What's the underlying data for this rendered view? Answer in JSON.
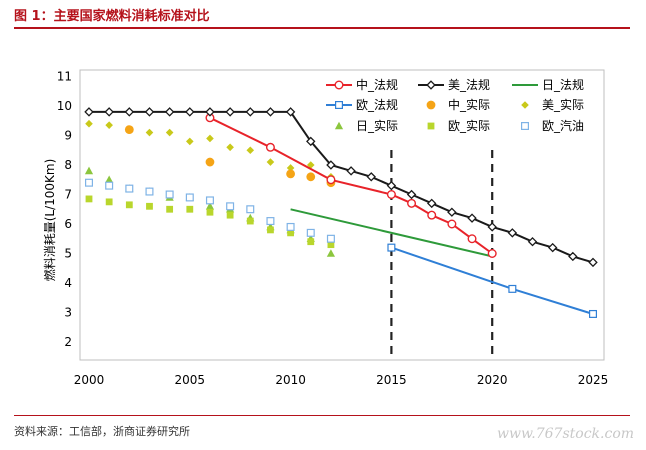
{
  "title": "图 1：主要国家燃料消耗标准对比",
  "source": "资料来源：工信部，浙商证券研究所",
  "watermark": "www.767stock.com",
  "chart_data": {
    "type": "line",
    "ylabel": "燃料消耗量(L/100Km)",
    "xlim": [
      2000,
      2025
    ],
    "ylim": [
      1.5,
      11
    ],
    "x_ticks": [
      2000,
      2005,
      2010,
      2015,
      2020,
      2025
    ],
    "y_ticks": [
      2,
      3,
      4,
      5,
      6,
      7,
      8,
      9,
      10,
      11
    ],
    "vlines": [
      2015,
      2020
    ],
    "legend_position": "top-right",
    "series": [
      {
        "name": "中_法规",
        "kind": "line",
        "color": "#e8232a",
        "marker": "circle-open",
        "x": [
          2006,
          2009,
          2012,
          2015,
          2016,
          2017,
          2018,
          2019,
          2020
        ],
        "y": [
          9.6,
          8.6,
          7.5,
          7.0,
          6.7,
          6.3,
          6.0,
          5.5,
          5.0
        ]
      },
      {
        "name": "美_法规",
        "kind": "line",
        "color": "#1a1a1a",
        "marker": "diamond-open",
        "x": [
          2000,
          2001,
          2002,
          2003,
          2004,
          2005,
          2006,
          2007,
          2008,
          2009,
          2010,
          2011,
          2012,
          2013,
          2014,
          2015,
          2016,
          2017,
          2018,
          2019,
          2020,
          2021,
          2022,
          2023,
          2024,
          2025
        ],
        "y": [
          9.8,
          9.8,
          9.8,
          9.8,
          9.8,
          9.8,
          9.8,
          9.8,
          9.8,
          9.8,
          9.8,
          8.8,
          8.0,
          7.8,
          7.6,
          7.3,
          7.0,
          6.7,
          6.4,
          6.2,
          5.9,
          5.7,
          5.4,
          5.2,
          4.9,
          4.7
        ]
      },
      {
        "name": "日_法规",
        "kind": "line",
        "color": "#2e9a3a",
        "marker": "none",
        "x": [
          2010,
          2020
        ],
        "y": [
          6.5,
          4.9
        ]
      },
      {
        "name": "欧_法规",
        "kind": "line",
        "color": "#2f7fd6",
        "marker": "square-open",
        "x": [
          2015,
          2021,
          2025
        ],
        "y": [
          5.2,
          3.8,
          2.95
        ]
      },
      {
        "name": "中_实际",
        "kind": "scatter",
        "color": "#f5a416",
        "marker": "circle",
        "x": [
          2002,
          2006,
          2010,
          2011,
          2012
        ],
        "y": [
          9.2,
          8.1,
          7.7,
          7.6,
          7.4
        ]
      },
      {
        "name": "美_实际",
        "kind": "scatter",
        "color": "#c9c91a",
        "marker": "diamond",
        "x": [
          2000,
          2001,
          2002,
          2003,
          2004,
          2005,
          2006,
          2007,
          2008,
          2009,
          2010,
          2011,
          2012
        ],
        "y": [
          9.4,
          9.35,
          9.2,
          9.1,
          9.1,
          8.8,
          8.9,
          8.6,
          8.5,
          8.1,
          7.9,
          8.0,
          7.6
        ]
      },
      {
        "name": "日_实际",
        "kind": "scatter",
        "color": "#8cc63e",
        "marker": "triangle",
        "x": [
          2000,
          2001,
          2002,
          2003,
          2004,
          2005,
          2006,
          2007,
          2008,
          2009,
          2010,
          2011,
          2012
        ],
        "y": [
          7.8,
          7.5,
          7.2,
          7.1,
          6.9,
          6.9,
          6.6,
          6.5,
          6.2,
          5.9,
          5.8,
          5.5,
          5.0
        ]
      },
      {
        "name": "欧_实际",
        "kind": "scatter",
        "color": "#b9d62c",
        "marker": "square",
        "x": [
          2000,
          2001,
          2002,
          2003,
          2004,
          2005,
          2006,
          2007,
          2008,
          2009,
          2010,
          2011,
          2012
        ],
        "y": [
          6.85,
          6.75,
          6.65,
          6.6,
          6.5,
          6.5,
          6.4,
          6.3,
          6.1,
          5.8,
          5.7,
          5.4,
          5.3
        ]
      },
      {
        "name": "欧_汽油",
        "kind": "scatter",
        "color": "#7fb3e6",
        "marker": "square-open",
        "x": [
          2000,
          2001,
          2002,
          2003,
          2004,
          2005,
          2006,
          2007,
          2008,
          2009,
          2010,
          2011,
          2012
        ],
        "y": [
          7.4,
          7.3,
          7.2,
          7.1,
          7.0,
          6.9,
          6.8,
          6.6,
          6.5,
          6.1,
          5.9,
          5.7,
          5.5
        ]
      }
    ]
  }
}
